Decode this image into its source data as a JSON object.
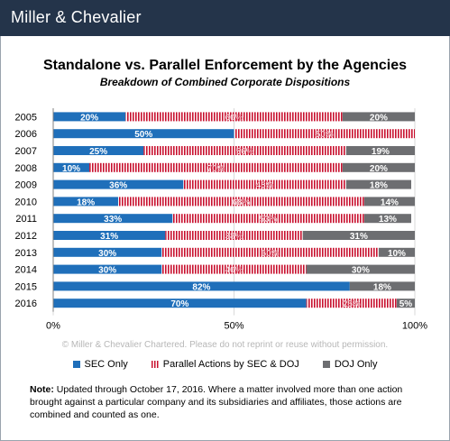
{
  "header": {
    "brand": "Miller & Chevalier"
  },
  "chart_data": {
    "type": "bar",
    "orientation": "horizontal",
    "stacked": true,
    "percent_scale": true,
    "title": "Standalone vs. Parallel Enforcement by the Agencies",
    "subtitle": "Breakdown of Combined Corporate Dispositions",
    "categories": [
      "2005",
      "2006",
      "2007",
      "2008",
      "2009",
      "2010",
      "2011",
      "2012",
      "2013",
      "2014",
      "2015",
      "2016"
    ],
    "series": [
      {
        "name": "SEC Only",
        "color": "#1f6fba",
        "pattern": "solid",
        "values": [
          20,
          50,
          25,
          10,
          36,
          18,
          33,
          31,
          30,
          30,
          82,
          70
        ],
        "labels": [
          "20%",
          "50%",
          "25%",
          "10%",
          "36%",
          "18%",
          "33%",
          "31%",
          "30%",
          "30%",
          "82%",
          "70%"
        ]
      },
      {
        "name": "Parallel Actions by SEC & DOJ",
        "color": "#c8102e",
        "pattern": "vertical-stripes",
        "values": [
          60,
          50,
          56,
          70,
          45,
          68,
          53,
          38,
          60,
          40,
          0,
          25
        ],
        "labels": [
          "60%",
          "50%",
          "56%",
          "70%",
          "45%",
          "68%",
          "53%",
          "38%",
          "60%",
          "40%",
          "",
          "25%"
        ]
      },
      {
        "name": "DOJ Only",
        "color": "#6d6e71",
        "pattern": "solid",
        "values": [
          20,
          0,
          19,
          20,
          18,
          14,
          13,
          31,
          10,
          30,
          18,
          5
        ],
        "labels": [
          "20%",
          "",
          "19%",
          "20%",
          "18%",
          "14%",
          "13%",
          "31%",
          "10%",
          "30%",
          "18%",
          "5%"
        ]
      }
    ],
    "xlim": [
      0,
      100
    ],
    "x_ticks": [
      "0%",
      "50%",
      "100%"
    ],
    "legend_position": "bottom",
    "grid": true
  },
  "copyright": "© Miller & Chevalier Chartered. Please do not reprint or reuse without permission.",
  "note": {
    "label": "Note:",
    "text": "Updated through October 17, 2016. Where a matter involved more than one action brought against a particular company and its subsidiaries and affiliates, those actions are combined and counted as one."
  }
}
